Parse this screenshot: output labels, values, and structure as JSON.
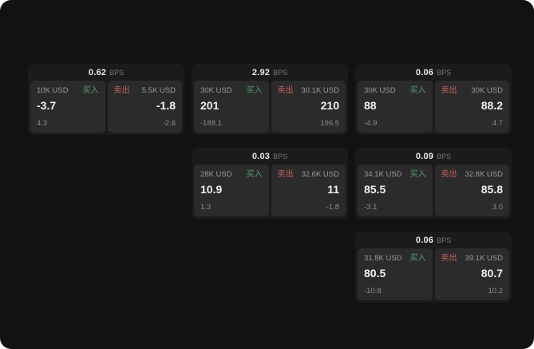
{
  "labels": {
    "buy": "买入",
    "sell": "卖出",
    "bps": "BPS"
  },
  "colors": {
    "buy": "#4fa36c",
    "sell": "#c95f5a",
    "background": "#121212",
    "card": "#1b1b1b",
    "panel": "#2b2b2b"
  },
  "cards": [
    {
      "spread": "0.62",
      "buy": {
        "size": "10K USD",
        "price": "-3.7",
        "sub": "4.3"
      },
      "sell": {
        "size": "5.5K USD",
        "price": "-1.8",
        "sub": "-2.6"
      }
    },
    {
      "spread": "2.92",
      "buy": {
        "size": "30K USD",
        "price": "201",
        "sub": "-188.1"
      },
      "sell": {
        "size": "30.1K USD",
        "price": "210",
        "sub": "196.5"
      }
    },
    {
      "spread": "0.06",
      "buy": {
        "size": "30K USD",
        "price": "88",
        "sub": "-4.9"
      },
      "sell": {
        "size": "30K USD",
        "price": "88.2",
        "sub": "4.7"
      }
    },
    {
      "spread": "0.03",
      "buy": {
        "size": "28K USD",
        "price": "10.9",
        "sub": "1.3"
      },
      "sell": {
        "size": "32.6K USD",
        "price": "11",
        "sub": "-1.8"
      }
    },
    {
      "spread": "0.09",
      "buy": {
        "size": "34.1K USD",
        "price": "85.5",
        "sub": "-3.1"
      },
      "sell": {
        "size": "32.8K USD",
        "price": "85.8",
        "sub": "3.0"
      }
    },
    {
      "spread": "0.06",
      "buy": {
        "size": "31.8K USD",
        "price": "80.5",
        "sub": "-10.8"
      },
      "sell": {
        "size": "39.1K USD",
        "price": "80.7",
        "sub": "10.2"
      }
    }
  ]
}
